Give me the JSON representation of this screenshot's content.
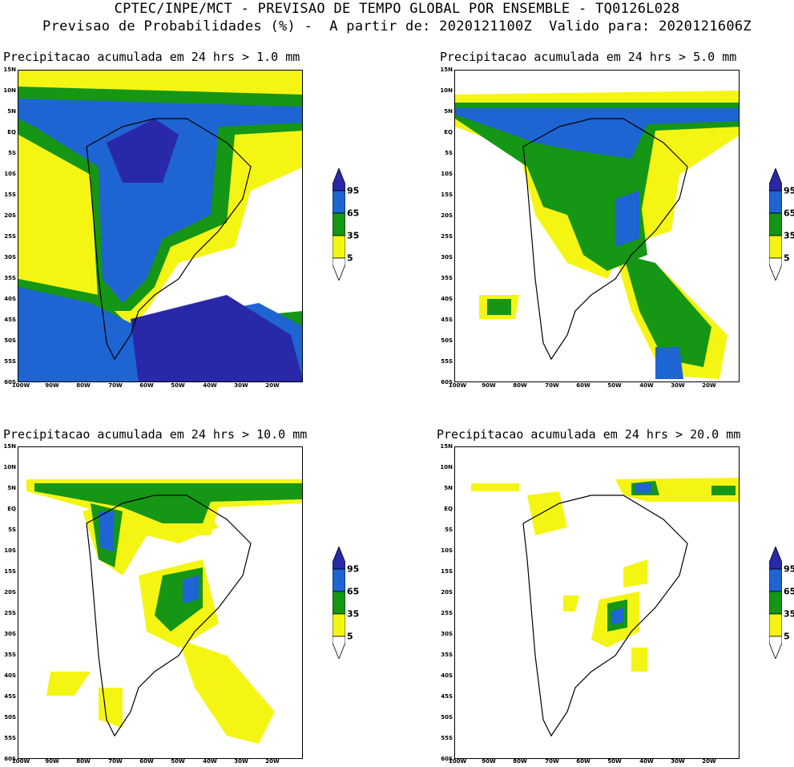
{
  "header": {
    "line1": "CPTEC/INPE/MCT - PREVISAO DE TEMPO GLOBAL POR ENSEMBLE - TQ0126L028",
    "line2": "Previsao de Probabilidades (%) -  A partir de: 2020121100Z  Valido para: 2020121606Z"
  },
  "panels": [
    {
      "title": "Precipitacao acumulada em 24 hrs > 1.0 mm"
    },
    {
      "title": "Precipitacao acumulada em 24 hrs > 5.0 mm"
    },
    {
      "title": "Precipitacao acumulada em 24 hrs > 10.0 mm"
    },
    {
      "title": "Precipitacao acumulada em 24 hrs > 20.0 mm"
    }
  ],
  "lat_labels": [
    "15N",
    "10N",
    "5N",
    "EQ",
    "5S",
    "10S",
    "15S",
    "20S",
    "25S",
    "30S",
    "35S",
    "40S",
    "45S",
    "50S",
    "55S",
    "60S"
  ],
  "lon_labels": [
    "100W",
    "90W",
    "80W",
    "70W",
    "60W",
    "50W",
    "40W",
    "30W",
    "20W"
  ],
  "colorbar": {
    "levels": [
      "95",
      "65",
      "35",
      "5"
    ],
    "colors": {
      "c95": "#2828a8",
      "c65": "#1e64d2",
      "c35": "#159615",
      "c5": "#f5f514",
      "none": "#ffffff"
    }
  },
  "map_colors": {
    "land": "#ffffff",
    "coast": "#000000"
  }
}
